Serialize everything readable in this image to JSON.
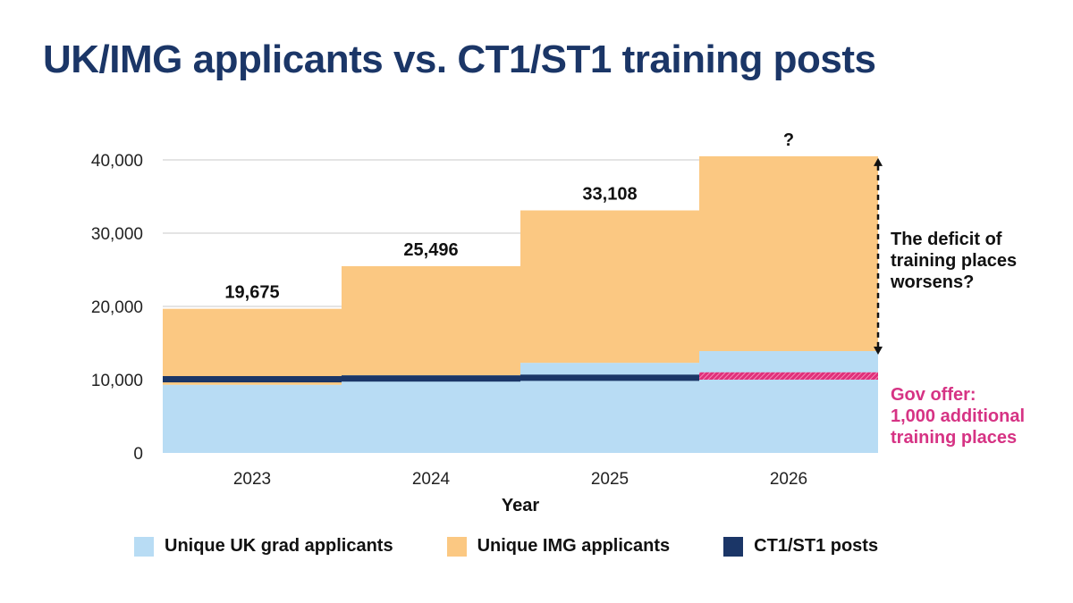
{
  "title": "UK/IMG applicants vs. CT1/ST1 training posts",
  "chart_data": {
    "type": "area",
    "step": true,
    "xlabel": "Year",
    "ylabel": "",
    "categories": [
      "2023",
      "2024",
      "2025",
      "2026"
    ],
    "ylim": [
      0,
      40000
    ],
    "yticks": [
      0,
      10000,
      20000,
      30000,
      40000
    ],
    "ytick_labels": [
      "0",
      "10,000",
      "20,000",
      "30,000",
      "40,000"
    ],
    "grid": true,
    "series": [
      {
        "name": "Unique UK grad applicants",
        "values": [
          9300,
          10600,
          12300,
          13900
        ],
        "color": "#b8dcf4"
      },
      {
        "name": "Unique IMG applicants",
        "values": [
          10375,
          14896,
          20808,
          26600
        ],
        "color": "#fbc882"
      },
      {
        "name": "CT1/ST1 posts",
        "values": [
          10000,
          10100,
          10200,
          11000
        ],
        "color": "#1b3667"
      }
    ],
    "totals": [
      19675,
      25496,
      33108,
      40500
    ],
    "total_labels": [
      "19,675",
      "25,496",
      "33,108",
      "?"
    ],
    "gov_offer": {
      "year": "2026",
      "base": 10000,
      "additional": 1000,
      "color": "#e0307a"
    },
    "annotations": [
      {
        "id": "deficit",
        "text": "The deficit of\ntraining places\nworsens?",
        "color": "#111111"
      },
      {
        "id": "gov",
        "text": "Gov offer:\n1,000 additional\ntraining places",
        "color": "#d63384"
      }
    ],
    "legend_position": "bottom"
  }
}
